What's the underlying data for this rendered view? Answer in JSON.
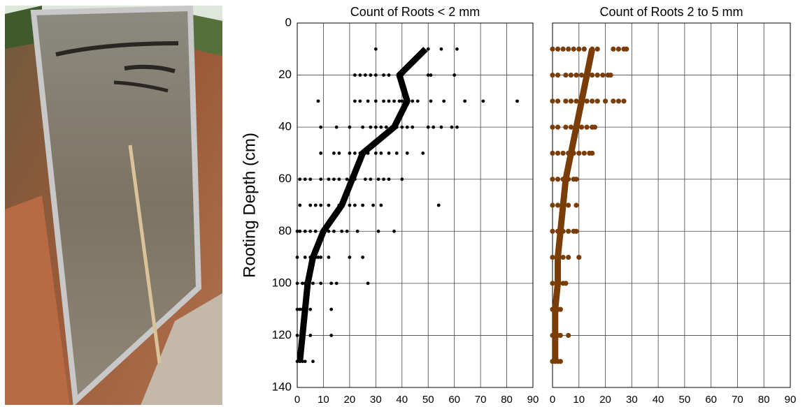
{
  "chart_data": [
    {
      "type": "scatter",
      "title": "Count of Roots < 2 mm",
      "ylabel": "Rooting Depth (cm)",
      "xlim": [
        0,
        90
      ],
      "xticks": [
        0,
        10,
        20,
        30,
        40,
        50,
        60,
        70,
        80,
        90
      ],
      "ylim": [
        0,
        140
      ],
      "yticks": [
        0,
        20,
        40,
        60,
        80,
        100,
        120,
        140
      ],
      "y_inverted": true,
      "grid": true,
      "show_ytick_labels": true,
      "series": [
        {
          "mode": "points",
          "color": "#000000",
          "x": [
            30,
            50,
            55,
            61,
            22,
            24,
            26,
            28,
            30,
            33,
            35,
            40,
            50,
            51,
            60,
            8,
            22,
            24,
            27,
            30,
            33,
            35,
            37,
            39,
            40,
            42,
            44,
            46,
            51,
            56,
            64,
            71,
            84,
            9,
            15,
            20,
            25,
            28,
            30,
            32,
            34,
            36,
            38,
            40,
            42,
            44,
            50,
            52,
            55,
            59,
            61,
            9,
            14,
            16,
            20,
            22,
            24,
            27,
            30,
            32,
            35,
            38,
            42,
            48,
            1,
            3,
            5,
            9,
            12,
            14,
            16,
            19,
            22,
            26,
            28,
            31,
            33,
            35,
            40,
            1,
            5,
            7,
            9,
            12,
            16,
            20,
            22,
            25,
            29,
            32,
            54,
            0,
            1,
            3,
            5,
            7,
            10,
            12,
            14,
            17,
            19,
            23,
            31,
            37,
            0,
            3,
            5,
            6,
            7,
            8,
            9,
            12,
            20,
            25,
            0,
            2,
            3,
            6,
            9,
            13,
            15,
            27,
            0,
            1,
            2,
            3,
            5,
            13,
            0,
            2,
            5,
            13,
            0,
            1,
            2,
            3,
            6
          ],
          "y": [
            10,
            10,
            10,
            10,
            20,
            20,
            20,
            20,
            20,
            20,
            20,
            20,
            20,
            20,
            20,
            30,
            30,
            30,
            30,
            30,
            30,
            30,
            30,
            30,
            30,
            30,
            30,
            30,
            30,
            30,
            30,
            30,
            30,
            40,
            40,
            40,
            40,
            40,
            40,
            40,
            40,
            40,
            40,
            40,
            40,
            40,
            40,
            40,
            40,
            40,
            40,
            50,
            50,
            50,
            50,
            50,
            50,
            50,
            50,
            50,
            50,
            50,
            50,
            50,
            60,
            60,
            60,
            60,
            60,
            60,
            60,
            60,
            60,
            60,
            60,
            60,
            60,
            60,
            60,
            70,
            70,
            70,
            70,
            70,
            70,
            70,
            70,
            70,
            70,
            70,
            70,
            80,
            80,
            80,
            80,
            80,
            80,
            80,
            80,
            80,
            80,
            80,
            80,
            80,
            90,
            90,
            90,
            90,
            90,
            90,
            90,
            90,
            90,
            90,
            100,
            100,
            100,
            100,
            100,
            100,
            100,
            100,
            110,
            110,
            110,
            110,
            110,
            110,
            120,
            120,
            120,
            120,
            130,
            130,
            130,
            130,
            130
          ]
        },
        {
          "mode": "line",
          "color": "#000000",
          "x": [
            49,
            39,
            42,
            37,
            25,
            21,
            17,
            10,
            6,
            4,
            3,
            2,
            1
          ],
          "y": [
            10,
            20,
            30,
            40,
            50,
            60,
            70,
            80,
            90,
            100,
            110,
            120,
            130
          ]
        }
      ]
    },
    {
      "type": "scatter",
      "title": "Count of Roots 2 to 5 mm",
      "xlim": [
        0,
        90
      ],
      "xticks": [
        0,
        10,
        20,
        30,
        40,
        50,
        60,
        70,
        80,
        90
      ],
      "ylim": [
        0,
        140
      ],
      "yticks": [
        0,
        20,
        40,
        60,
        80,
        100,
        120,
        140
      ],
      "y_inverted": true,
      "grid": true,
      "show_ytick_labels": false,
      "series": [
        {
          "mode": "points",
          "color": "#7a3d08",
          "x": [
            0,
            2,
            4,
            6,
            8,
            10,
            12,
            15,
            17,
            23,
            25,
            27,
            28,
            0,
            2,
            5,
            7,
            9,
            11,
            13,
            15,
            17,
            19,
            21,
            22,
            0,
            2,
            5,
            7,
            9,
            11,
            13,
            15,
            17,
            20,
            23,
            25,
            27,
            0,
            2,
            5,
            7,
            9,
            11,
            13,
            15,
            16,
            0,
            2,
            4,
            6,
            8,
            10,
            12,
            14,
            15,
            0,
            2,
            4,
            6,
            8,
            9,
            0,
            2,
            4,
            6,
            9,
            0,
            2,
            4,
            6,
            8,
            9,
            0,
            2,
            4,
            6,
            10,
            0,
            2,
            4,
            5,
            0,
            1,
            2,
            3,
            0,
            2,
            3,
            6,
            0,
            1,
            2,
            3
          ],
          "y": [
            10,
            10,
            10,
            10,
            10,
            10,
            10,
            10,
            10,
            10,
            10,
            10,
            10,
            20,
            20,
            20,
            20,
            20,
            20,
            20,
            20,
            20,
            20,
            20,
            20,
            30,
            30,
            30,
            30,
            30,
            30,
            30,
            30,
            30,
            30,
            30,
            30,
            30,
            40,
            40,
            40,
            40,
            40,
            40,
            40,
            40,
            40,
            50,
            50,
            50,
            50,
            50,
            50,
            50,
            50,
            50,
            60,
            60,
            60,
            60,
            60,
            60,
            70,
            70,
            70,
            70,
            70,
            80,
            80,
            80,
            80,
            80,
            80,
            90,
            90,
            90,
            90,
            90,
            100,
            100,
            100,
            100,
            110,
            110,
            110,
            110,
            120,
            120,
            120,
            120,
            130,
            130,
            130,
            130
          ]
        },
        {
          "mode": "line",
          "color": "#7a3d08",
          "x": [
            15,
            13,
            11,
            9,
            7,
            5,
            4,
            3,
            2,
            2,
            1,
            1,
            1
          ],
          "y": [
            10,
            20,
            30,
            40,
            50,
            60,
            70,
            80,
            90,
            100,
            110,
            120,
            130
          ]
        }
      ]
    }
  ]
}
